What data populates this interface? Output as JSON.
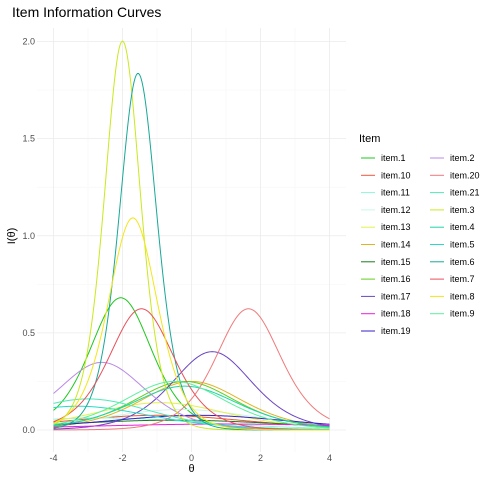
{
  "chart_data": {
    "type": "line",
    "title": "Item Information Curves",
    "xlabel": "θ",
    "ylabel": "I(θ)",
    "xlim": [
      -4,
      4
    ],
    "ylim": [
      0,
      2.0
    ],
    "x_ticks": [
      -4,
      -2,
      0,
      2,
      4
    ],
    "x_tick_labels": [
      "-4",
      "-2",
      "0",
      "2",
      "4"
    ],
    "y_ticks": [
      0,
      0.5,
      1.0,
      1.5,
      2.0
    ],
    "y_tick_labels": [
      "0.0",
      "0.5",
      "1.0",
      "1.5",
      "2.0"
    ],
    "grid": true,
    "legend": {
      "title": "Item",
      "placement": "right",
      "columns": 2
    },
    "series": [
      {
        "name": "item.1",
        "color": "#1ec71e",
        "a": 1.65,
        "b": -2.05
      },
      {
        "name": "item.10",
        "color": "#f0563a",
        "a": 0.55,
        "b": -1.0
      },
      {
        "name": "item.11",
        "color": "#8ef5d6",
        "a": 0.5,
        "b": -2.6
      },
      {
        "name": "item.12",
        "color": "#c9f7e9",
        "a": 0.65,
        "b": -0.3
      },
      {
        "name": "item.13",
        "color": "#e6f04a",
        "a": 0.75,
        "b": -0.9
      },
      {
        "name": "item.14",
        "color": "#e0b324",
        "a": 1.0,
        "b": 0.0
      },
      {
        "name": "item.15",
        "color": "#1c7a1c",
        "a": 0.45,
        "b": -0.5
      },
      {
        "name": "item.16",
        "color": "#60cf1f",
        "a": 1.0,
        "b": -0.2
      },
      {
        "name": "item.17",
        "color": "#6a45c4",
        "a": 1.27,
        "b": 0.6
      },
      {
        "name": "item.18",
        "color": "#e81ee0",
        "a": 0.35,
        "b": 1.0
      },
      {
        "name": "item.19",
        "color": "#3322c9",
        "a": 0.55,
        "b": 0.2
      },
      {
        "name": "item.2",
        "color": "#b888e8",
        "a": 1.18,
        "b": -2.6
      },
      {
        "name": "item.20",
        "color": "#f07a7a",
        "a": 1.58,
        "b": 1.65
      },
      {
        "name": "item.21",
        "color": "#52e8b8",
        "a": 0.8,
        "b": -3.0
      },
      {
        "name": "item.3",
        "color": "#cbe81e",
        "a": 2.83,
        "b": -2.0
      },
      {
        "name": "item.4",
        "color": "#1ed6a8",
        "a": 0.95,
        "b": -0.2
      },
      {
        "name": "item.5",
        "color": "#2ad9c9",
        "a": 0.7,
        "b": -3.3
      },
      {
        "name": "item.6",
        "color": "#16a896",
        "a": 2.71,
        "b": -1.55
      },
      {
        "name": "item.7",
        "color": "#e8505a",
        "a": 1.58,
        "b": -1.45
      },
      {
        "name": "item.8",
        "color": "#f2e616",
        "a": 2.09,
        "b": -1.7
      },
      {
        "name": "item.9",
        "color": "#5cf0a0",
        "a": 1.0,
        "b": -0.5
      }
    ]
  }
}
